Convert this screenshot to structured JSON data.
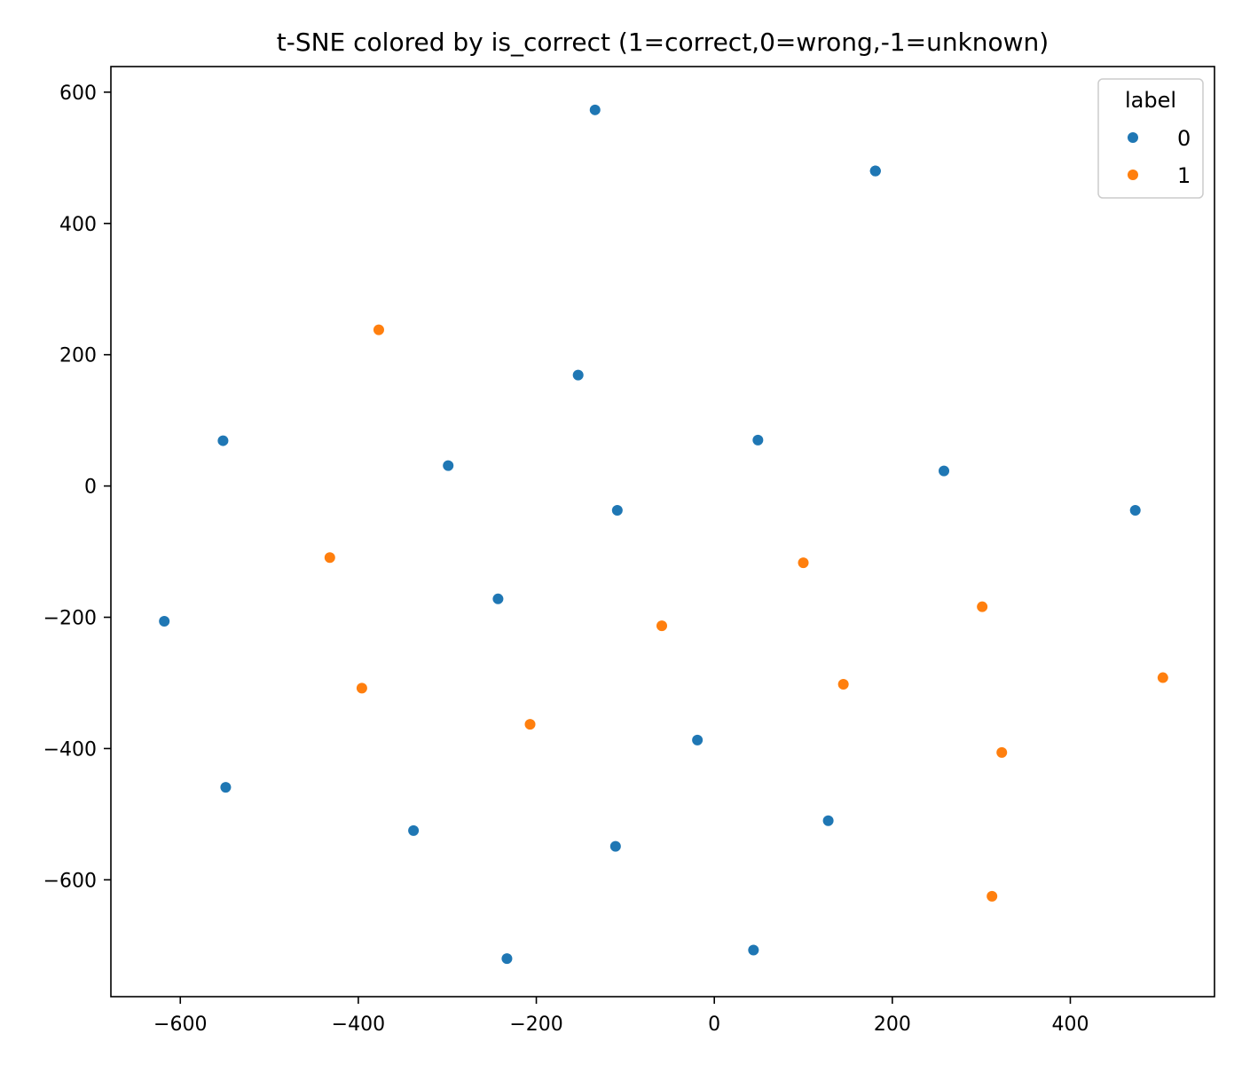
{
  "chart_data": {
    "type": "scatter",
    "title": "t-SNE colored by is_correct (1=correct,0=wrong,-1=unknown)",
    "xlabel": "",
    "ylabel": "",
    "xlim": [
      -678,
      562
    ],
    "ylim": [
      -778,
      639
    ],
    "xticks": [
      -600,
      -400,
      -200,
      0,
      200,
      400
    ],
    "yticks": [
      600,
      400,
      200,
      0,
      -200,
      -400,
      -600
    ],
    "xtick_labels": [
      "−600",
      "−400",
      "−200",
      "0",
      "200",
      "400"
    ],
    "ytick_labels": [
      "600",
      "400",
      "200",
      "0",
      "−200",
      "−400",
      "−600"
    ],
    "grid": false,
    "legend": {
      "title": "label",
      "placement": "top-right"
    },
    "series": [
      {
        "name": "0",
        "color": "#1f77b4",
        "points": [
          [
            -134,
            573
          ],
          [
            181,
            480
          ],
          [
            181,
            480
          ],
          [
            181,
            480
          ],
          [
            -153,
            169
          ],
          [
            -552,
            69
          ],
          [
            -299,
            31
          ],
          [
            49,
            70
          ],
          [
            258,
            23
          ],
          [
            -109,
            -37
          ],
          [
            473,
            -37
          ],
          [
            -618,
            -206
          ],
          [
            -243,
            -172
          ],
          [
            -19,
            -387
          ],
          [
            -549,
            -459
          ],
          [
            -338,
            -525
          ],
          [
            -111,
            -549
          ],
          [
            128,
            -510
          ],
          [
            -233,
            -720
          ],
          [
            44,
            -707
          ]
        ]
      },
      {
        "name": "1",
        "color": "#ff7f0e",
        "points": [
          [
            -377,
            238
          ],
          [
            -432,
            -109
          ],
          [
            100,
            -117
          ],
          [
            -59,
            -213
          ],
          [
            301,
            -184
          ],
          [
            -396,
            -308
          ],
          [
            145,
            -302
          ],
          [
            504,
            -292
          ],
          [
            -207,
            -363
          ],
          [
            323,
            -406
          ],
          [
            312,
            -625
          ]
        ]
      }
    ]
  }
}
